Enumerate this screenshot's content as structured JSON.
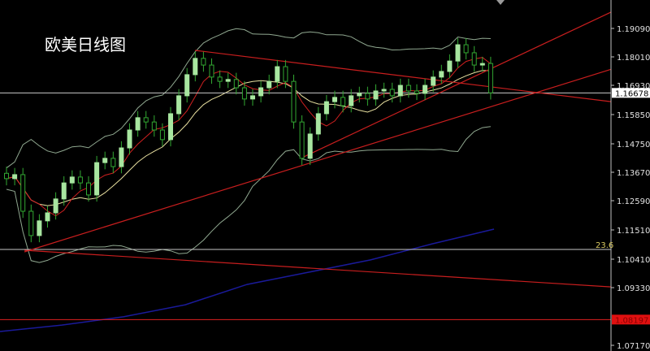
{
  "chart_data": {
    "type": "candlestick",
    "title": "欧美日线图",
    "y_ticks": [
      "1.19090",
      "1.18010",
      "1.16930",
      "1.15850",
      "1.14750",
      "1.13670",
      "1.12590",
      "1.11510",
      "1.10410",
      "1.09330",
      "1.07170"
    ],
    "ylim": [
      1.0705,
      1.2015
    ],
    "closes": [
      1.1347,
      1.1362,
      1.1225,
      1.1134,
      1.1189,
      1.1219,
      1.1271,
      1.1331,
      1.1353,
      1.1331,
      1.1286,
      1.1407,
      1.1423,
      1.1392,
      1.1462,
      1.1529,
      1.1575,
      1.1559,
      1.1529,
      1.1493,
      1.159,
      1.1657,
      1.1736,
      1.1797,
      1.1772,
      1.1727,
      1.1711,
      1.1718,
      1.1687,
      1.1645,
      1.1657,
      1.1687,
      1.1711,
      1.1766,
      1.1711,
      1.1559,
      1.1423,
      1.1514,
      1.159,
      1.1635,
      1.1651,
      1.162,
      1.1657,
      1.1666,
      1.1645,
      1.1675,
      1.1681,
      1.1657,
      1.1696,
      1.1675,
      1.1666,
      1.1696,
      1.1727,
      1.1748,
      1.1787,
      1.1848,
      1.1818,
      1.1772,
      1.1778,
      1.1668
    ],
    "long_ma": [
      1.0775,
      1.0799,
      1.083,
      1.0875,
      1.0951,
      1.0997,
      1.1043,
      1.1103,
      1.1158
    ],
    "current_price": {
      "label": "1.16678",
      "value": 1.16678
    },
    "fib_level": {
      "label": "23.6",
      "value": 1.1082
    },
    "support_level": {
      "label": "1.08197",
      "value": 1.08197
    },
    "trendlines": [
      {
        "from": 1.1827,
        "to": 1.1635
      },
      {
        "from": 1.1423,
        "to": 1.197
      },
      {
        "from": 1.1073,
        "to": 1.1756
      },
      {
        "from": 1.1079,
        "to": 1.0942
      }
    ],
    "colors": {
      "up": "#a8e6a0",
      "down": "#32a832",
      "trend": "#c81e1e",
      "ma_fast": "#d02020",
      "ma_mid": "#e8e0a0",
      "bands": "#90a890",
      "long_ma": "#1a1a9a",
      "axis": "#c0c0c0"
    }
  }
}
